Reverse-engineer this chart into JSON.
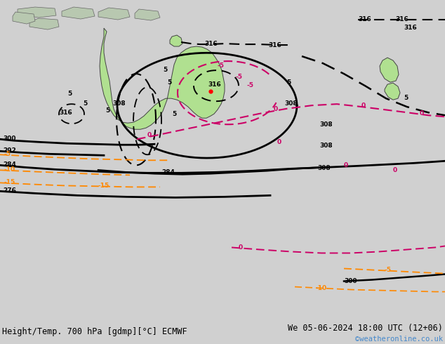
{
  "title_left": "Height/Temp. 700 hPa [gdmp][°C] ECMWF",
  "title_right": "We 05-06-2024 18:00 UTC (12+06)",
  "credit": "©weatheronline.co.uk",
  "bg_color": "#d0d0d0",
  "australia_color": "#b0e090",
  "land_color": "#b8c8b0",
  "ocean_color": "#d4d4d4",
  "footer_bg": "#ffffff",
  "text_color": "#000000",
  "credit_color": "#4488cc",
  "height_color": "#000000",
  "temp_warm_color": "#cc0066",
  "temp_cold_color": "#ff8800",
  "title_fontsize": 8.5,
  "credit_fontsize": 7.5,
  "label_fontsize": 6.5
}
